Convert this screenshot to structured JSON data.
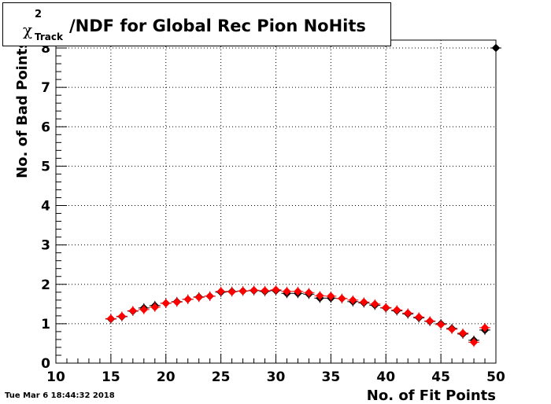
{
  "chart_data": {
    "type": "scatter",
    "title": {
      "symbol": "χ",
      "superscript": "2",
      "subscript": "Track",
      "text": "/NDF for Global Rec Pion NoHits"
    },
    "xlabel": "No. of Fit Points",
    "ylabel": "No. of Bad Points",
    "xlim": [
      10,
      50
    ],
    "ylim": [
      0,
      8.2
    ],
    "x_ticks": [
      10,
      15,
      20,
      25,
      30,
      35,
      40,
      45,
      50
    ],
    "y_ticks": [
      0,
      1,
      2,
      3,
      4,
      5,
      6,
      7,
      8
    ],
    "grid": true,
    "series": [
      {
        "color": "#000000",
        "marker": "diamond",
        "x": [
          15,
          16,
          17,
          18,
          19,
          20,
          21,
          22,
          23,
          24,
          25,
          26,
          27,
          28,
          29,
          30,
          31,
          32,
          33,
          34,
          35,
          36,
          37,
          38,
          39,
          40,
          41,
          42,
          43,
          44,
          45,
          46,
          47,
          48,
          49,
          50
        ],
        "y": [
          1.12,
          1.18,
          1.32,
          1.4,
          1.46,
          1.52,
          1.56,
          1.62,
          1.68,
          1.7,
          1.8,
          1.82,
          1.83,
          1.84,
          1.82,
          1.84,
          1.77,
          1.77,
          1.75,
          1.65,
          1.65,
          1.64,
          1.56,
          1.53,
          1.47,
          1.4,
          1.33,
          1.25,
          1.15,
          1.06,
          1.0,
          0.88,
          0.74,
          0.58,
          0.84,
          8.0
        ]
      },
      {
        "color": "#ff0000",
        "marker": "diamond",
        "x": [
          15,
          16,
          17,
          18,
          19,
          20,
          21,
          22,
          23,
          24,
          25,
          26,
          27,
          28,
          29,
          30,
          31,
          32,
          33,
          34,
          35,
          36,
          37,
          38,
          39,
          40,
          41,
          42,
          43,
          44,
          45,
          46,
          47,
          48,
          49
        ],
        "y": [
          1.13,
          1.19,
          1.33,
          1.36,
          1.42,
          1.52,
          1.55,
          1.62,
          1.67,
          1.7,
          1.82,
          1.81,
          1.83,
          1.85,
          1.84,
          1.86,
          1.82,
          1.82,
          1.79,
          1.71,
          1.7,
          1.64,
          1.6,
          1.55,
          1.5,
          1.41,
          1.35,
          1.27,
          1.17,
          1.07,
          0.98,
          0.86,
          0.76,
          0.53,
          0.9
        ]
      }
    ]
  },
  "timestamp": "Tue Mar  6 18:44:32 2018"
}
